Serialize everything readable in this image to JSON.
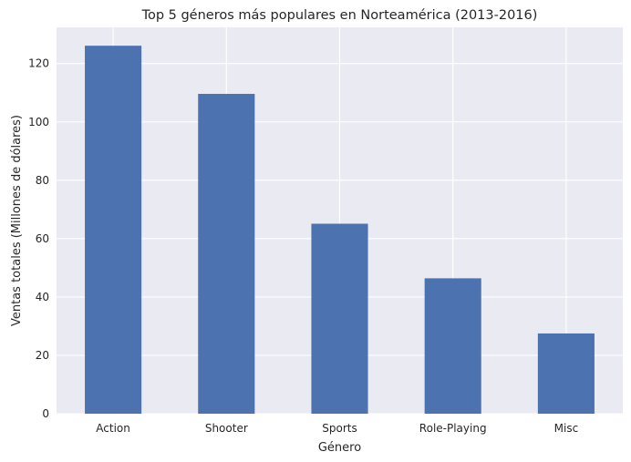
{
  "chart_data": {
    "type": "bar",
    "title": "Top 5 géneros más populares en Norteamérica (2013-2016)",
    "xlabel": "Género",
    "ylabel": "Ventas totales (Millones de dólares)",
    "categories": [
      "Action",
      "Shooter",
      "Sports",
      "Role-Playing",
      "Misc"
    ],
    "values": [
      126.1,
      109.6,
      65.1,
      46.4,
      27.5
    ],
    "ylim": [
      0,
      132.4
    ],
    "yticks": [
      0,
      20,
      40,
      60,
      80,
      100,
      120
    ],
    "grid": true,
    "colors": {
      "bar": "#4c72b0",
      "plot_background": "#eaeaf2",
      "grid": "#ffffff"
    }
  }
}
